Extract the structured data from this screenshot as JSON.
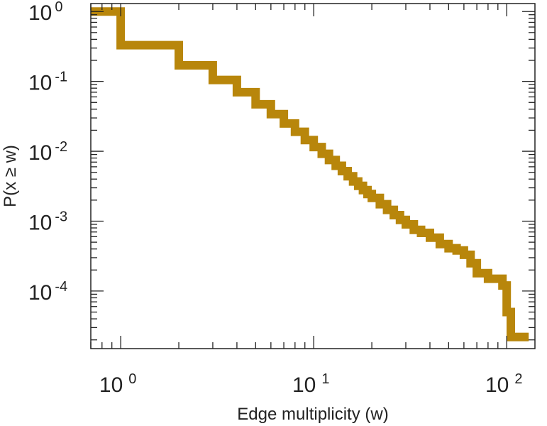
{
  "chart_data": {
    "type": "line",
    "style": "step (complementary cumulative distribution)",
    "xscale": "log",
    "yscale": "log",
    "xlabel": "Edge multiplicity (w)",
    "ylabel": "P(x ≥ w)",
    "xlim": [
      0.7,
      140
    ],
    "ylim": [
      1.5e-05,
      1.3
    ],
    "grid": false,
    "line_color": "#b8860b",
    "x_ticks": [
      {
        "value": 1,
        "base": "10",
        "exp": "0"
      },
      {
        "value": 10,
        "base": "10",
        "exp": "1"
      },
      {
        "value": 100,
        "base": "10",
        "exp": "2"
      }
    ],
    "y_ticks": [
      {
        "value": 1,
        "base": "10",
        "exp": "0"
      },
      {
        "value": 0.1,
        "base": "10",
        "exp": "-1"
      },
      {
        "value": 0.01,
        "base": "10",
        "exp": "-2"
      },
      {
        "value": 0.001,
        "base": "10",
        "exp": "-3"
      },
      {
        "value": 0.0001,
        "base": "10",
        "exp": "-4"
      }
    ],
    "series": [
      {
        "x": [
          0.7,
          1,
          2,
          3,
          4,
          5,
          6,
          7,
          8,
          9,
          10,
          11,
          12,
          13,
          14,
          15,
          16,
          17,
          18,
          19,
          20,
          22,
          24,
          26,
          28,
          30,
          33,
          36,
          40,
          45,
          50,
          55,
          60,
          65,
          70,
          80,
          90,
          95,
          100,
          105,
          120,
          130
        ],
        "y": [
          1.0,
          0.33,
          0.17,
          0.105,
          0.07,
          0.047,
          0.034,
          0.025,
          0.019,
          0.0145,
          0.0115,
          0.0092,
          0.0075,
          0.0062,
          0.0052,
          0.0044,
          0.0037,
          0.0032,
          0.00278,
          0.00245,
          0.00215,
          0.00175,
          0.00145,
          0.00122,
          0.00104,
          0.0009,
          0.00075,
          0.00068,
          0.00058,
          0.00047,
          0.00041,
          0.00038,
          0.00033,
          0.00025,
          0.00018,
          0.00015,
          0.00015,
          0.00012,
          5e-05,
          2.2e-05,
          2.2e-05,
          2.2e-05
        ]
      }
    ]
  }
}
